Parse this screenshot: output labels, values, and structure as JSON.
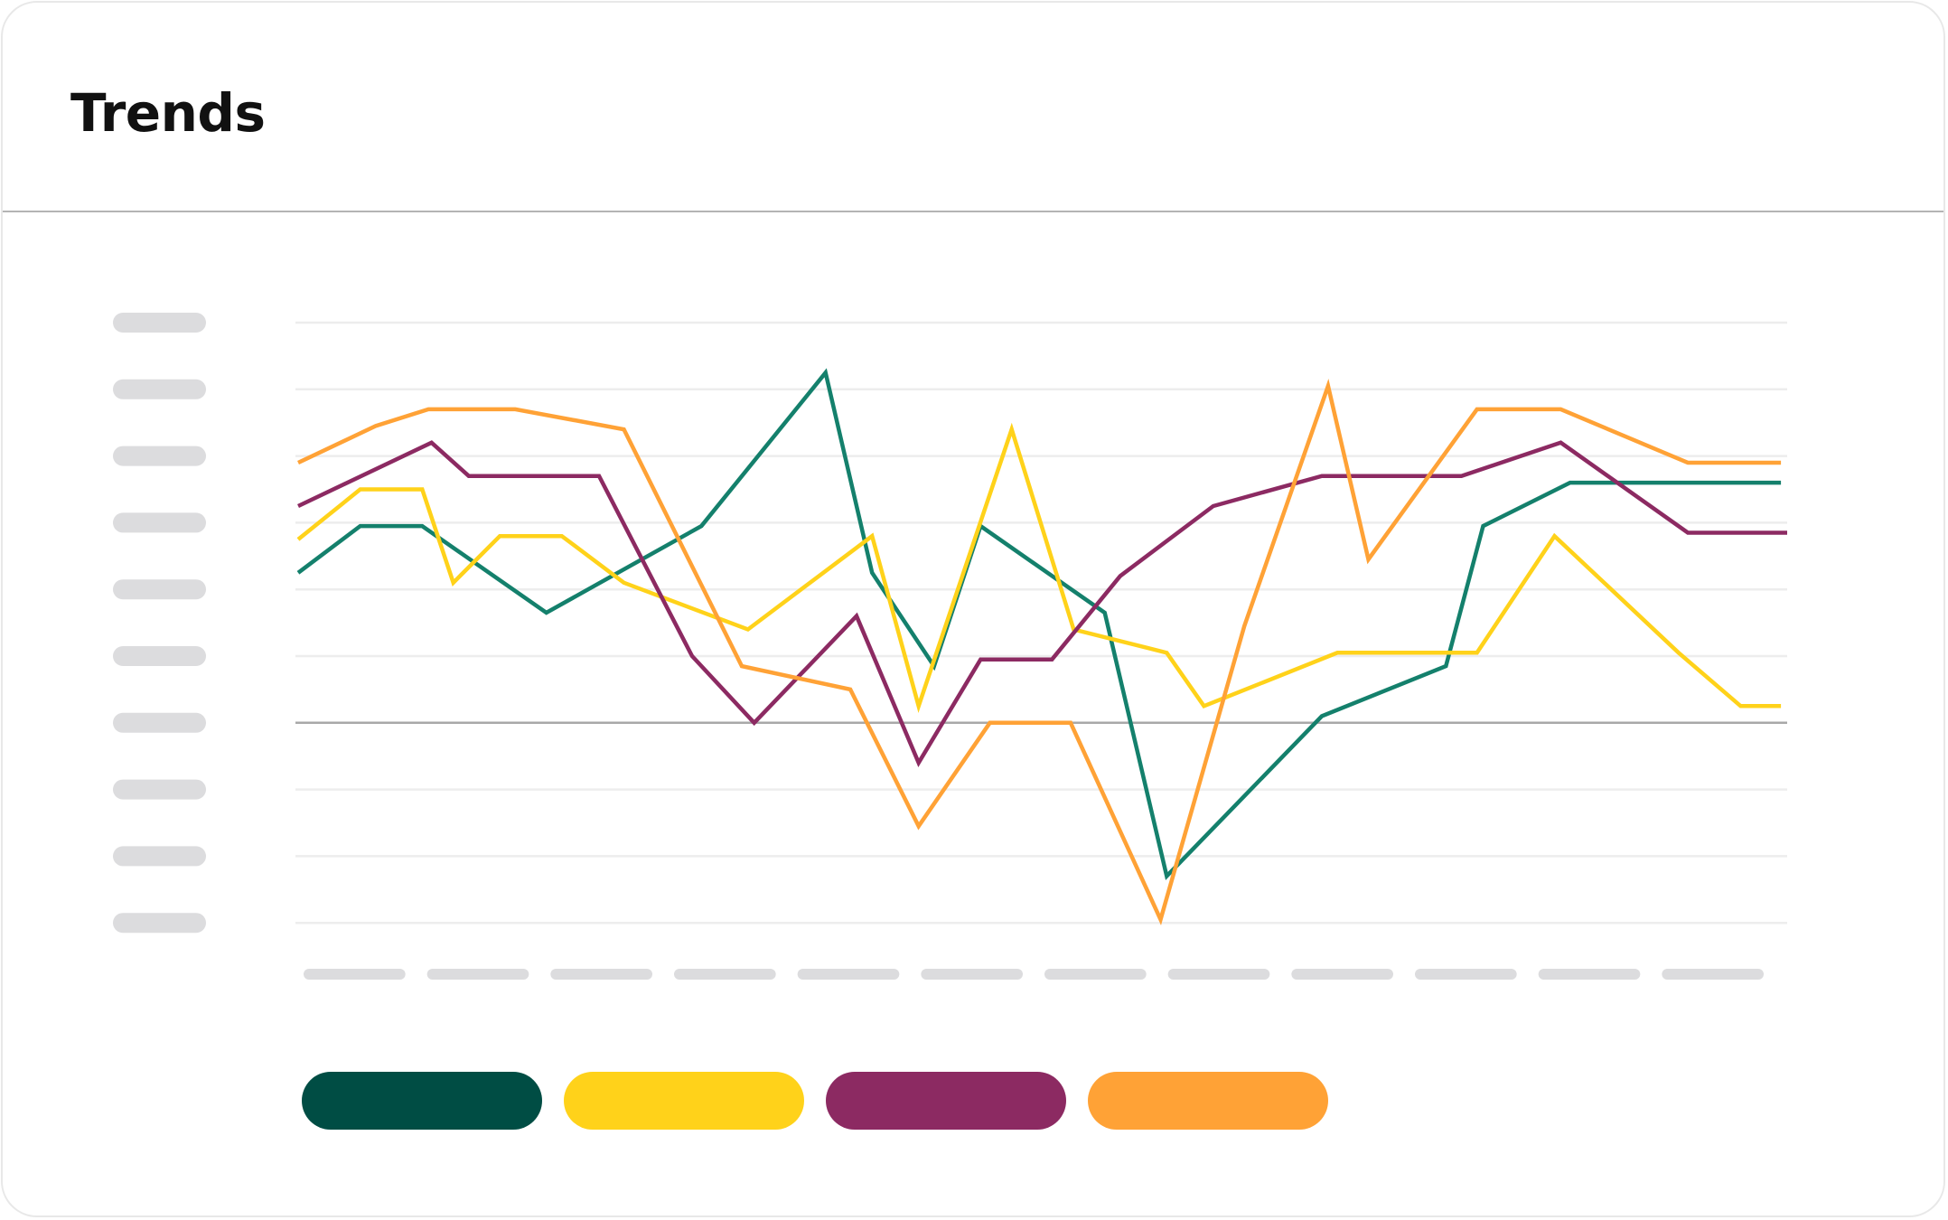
{
  "title": "Trends",
  "chart_data": {
    "type": "line",
    "title": "Trends",
    "x": [
      0,
      1,
      2,
      3,
      4,
      5,
      6,
      7,
      8,
      9,
      10,
      11,
      12,
      13,
      14,
      15,
      16,
      17,
      18,
      19,
      20,
      21,
      22,
      23,
      24,
      25,
      26,
      27,
      28,
      29,
      30,
      31,
      32,
      33,
      34,
      35,
      36,
      37,
      38,
      39,
      40,
      41,
      42,
      43,
      44,
      45,
      46,
      47,
      48
    ],
    "ylim": [
      0,
      9
    ],
    "grid": true,
    "baseline": 3,
    "series": [
      {
        "color": "#14806c",
        "legend_color": "#004d44",
        "points": [
          [
            0,
            2.25
          ],
          [
            2,
            2.95
          ],
          [
            4,
            2.95
          ],
          [
            8,
            1.65
          ],
          [
            13,
            2.95
          ],
          [
            17,
            5.25
          ],
          [
            18.5,
            2.25
          ],
          [
            20.5,
            0.85
          ],
          [
            22,
            2.95
          ],
          [
            26,
            1.65
          ],
          [
            28,
            -2.3
          ],
          [
            33,
            0.1
          ],
          [
            37,
            0.85
          ],
          [
            38.2,
            2.95
          ],
          [
            41,
            3.6
          ],
          [
            47.8,
            3.6
          ]
        ]
      },
      {
        "color": "#ffd21a",
        "legend_color": "#ffd21a",
        "points": [
          [
            0,
            2.75
          ],
          [
            2,
            3.5
          ],
          [
            4,
            3.5
          ],
          [
            5,
            2.1
          ],
          [
            6.5,
            2.8
          ],
          [
            8.5,
            2.8
          ],
          [
            10.5,
            2.1
          ],
          [
            14.5,
            1.4
          ],
          [
            18.5,
            2.8
          ],
          [
            20,
            0.25
          ],
          [
            23,
            4.4
          ],
          [
            25,
            1.4
          ],
          [
            28,
            1.05
          ],
          [
            29.2,
            0.25
          ],
          [
            33.5,
            1.05
          ],
          [
            38,
            1.05
          ],
          [
            40.5,
            2.8
          ],
          [
            44.5,
            1.05
          ],
          [
            46.5,
            0.25
          ],
          [
            47.8,
            0.25
          ]
        ]
      },
      {
        "color": "#8c2a62",
        "legend_color": "#8c2a62",
        "points": [
          [
            0,
            3.25
          ],
          [
            4.3,
            4.2
          ],
          [
            5.5,
            3.7
          ],
          [
            9.7,
            3.7
          ],
          [
            12.7,
            1.0
          ],
          [
            14.7,
            0
          ],
          [
            18,
            1.6
          ],
          [
            20,
            -0.6
          ],
          [
            22,
            0.95
          ],
          [
            24.3,
            0.95
          ],
          [
            26.5,
            2.2
          ],
          [
            29.5,
            3.25
          ],
          [
            33,
            3.7
          ],
          [
            37.5,
            3.7
          ],
          [
            40.7,
            4.2
          ],
          [
            44.8,
            2.85
          ],
          [
            48,
            2.85
          ]
        ]
      },
      {
        "color": "#ffa236",
        "legend_color": "#ffa236",
        "points": [
          [
            0,
            3.9
          ],
          [
            2.5,
            4.45
          ],
          [
            4.2,
            4.7
          ],
          [
            7,
            4.7
          ],
          [
            10.5,
            4.4
          ],
          [
            14.3,
            0.85
          ],
          [
            17.8,
            0.5
          ],
          [
            20,
            -1.55
          ],
          [
            22.3,
            0
          ],
          [
            24.9,
            0
          ],
          [
            27.8,
            -2.95
          ],
          [
            30.5,
            1.45
          ],
          [
            33.2,
            5.05
          ],
          [
            34.5,
            2.45
          ],
          [
            38,
            4.7
          ],
          [
            40.7,
            4.7
          ],
          [
            44.8,
            3.9
          ],
          [
            47.8,
            3.9
          ]
        ]
      }
    ]
  }
}
